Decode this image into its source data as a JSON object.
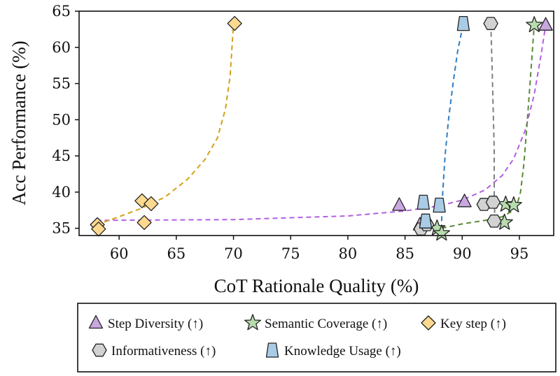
{
  "chart_data": {
    "type": "scatter",
    "title": "",
    "xlabel": "CoT Rationale Quality (%)",
    "ylabel": "Acc Performance (%)",
    "xlim": [
      56.5,
      98
    ],
    "ylim": [
      34,
      65
    ],
    "xticks": [
      60,
      65,
      70,
      75,
      80,
      85,
      90,
      95
    ],
    "yticks": [
      35,
      40,
      45,
      50,
      55,
      60,
      65
    ],
    "grid": false,
    "legend_position": "bottom",
    "series": [
      {
        "name": "Step Diversity (↑)",
        "marker": "triangle",
        "fill": "#c9a8e0",
        "curve_color": "#b25fe3",
        "points": [
          [
            84.5,
            38.2
          ],
          [
            86.3,
            35.5
          ],
          [
            90.2,
            38.7
          ],
          [
            97.3,
            63.1
          ]
        ],
        "curve": [
          [
            58,
            36.1
          ],
          [
            70,
            36.2
          ],
          [
            80,
            36.7
          ],
          [
            85,
            37.4
          ],
          [
            88,
            38.1
          ],
          [
            90,
            38.9
          ],
          [
            92,
            40.3
          ],
          [
            93.5,
            42.3
          ],
          [
            94.5,
            44.6
          ],
          [
            95.5,
            48.5
          ],
          [
            96.3,
            53.5
          ],
          [
            96.9,
            59
          ],
          [
            97.3,
            63.1
          ]
        ]
      },
      {
        "name": "Semantic Coverage (↑)",
        "marker": "star",
        "fill": "#b8dcae",
        "curve_color": "#5a8a3a",
        "points": [
          [
            87.8,
            35
          ],
          [
            88.2,
            34.3
          ],
          [
            93.7,
            35.8
          ],
          [
            93.8,
            38.3
          ],
          [
            94.5,
            38.2
          ],
          [
            96.3,
            63.1
          ]
        ],
        "curve": [
          [
            88.2,
            35
          ],
          [
            90,
            35.6
          ],
          [
            92,
            36.1
          ],
          [
            93.5,
            36.6
          ],
          [
            94.3,
            37.3
          ],
          [
            94.8,
            38.3
          ],
          [
            95.1,
            40
          ],
          [
            95.4,
            44
          ],
          [
            95.7,
            50
          ],
          [
            96,
            56.5
          ],
          [
            96.3,
            63.1
          ]
        ]
      },
      {
        "name": "Key step (↑)",
        "marker": "diamond",
        "fill": "#fcd98e",
        "curve_color": "#d4a017",
        "points": [
          [
            58.1,
            35.5
          ],
          [
            58.2,
            34.9
          ],
          [
            62.0,
            38.8
          ],
          [
            62.2,
            35.8
          ],
          [
            62.8,
            38.4
          ],
          [
            70.1,
            63.3
          ]
        ],
        "curve": [
          [
            58,
            35.5
          ],
          [
            60,
            36.6
          ],
          [
            62,
            37.8
          ],
          [
            64,
            39.3
          ],
          [
            66,
            41.8
          ],
          [
            67.5,
            44.5
          ],
          [
            68.6,
            47.5
          ],
          [
            69.3,
            51.5
          ],
          [
            69.7,
            56
          ],
          [
            70,
            63.3
          ]
        ]
      },
      {
        "name": "Informativeness (↑)",
        "marker": "hexagon",
        "fill": "#d2d2d2",
        "curve_color": "#7f7f7f",
        "points": [
          [
            86.4,
            34.9
          ],
          [
            86.9,
            35.5
          ],
          [
            91.9,
            38.3
          ],
          [
            92.7,
            38.6
          ],
          [
            92.8,
            36.0
          ],
          [
            92.5,
            63.3
          ]
        ],
        "curve": [
          [
            92.5,
            63.3
          ],
          [
            92.6,
            58
          ],
          [
            92.7,
            52
          ],
          [
            92.8,
            46
          ],
          [
            92.8,
            40
          ],
          [
            92.85,
            36
          ]
        ]
      },
      {
        "name": "Knowledge Usage (↑)",
        "marker": "trapezoid",
        "fill": "#a9cbe6",
        "curve_color": "#2f7cc4",
        "points": [
          [
            86.6,
            38.6
          ],
          [
            86.8,
            36.0
          ],
          [
            88.0,
            38.2
          ],
          [
            90.1,
            63.3
          ]
        ],
        "curve": [
          [
            88.2,
            36
          ],
          [
            88.3,
            40
          ],
          [
            88.5,
            45
          ],
          [
            88.8,
            50
          ],
          [
            89.2,
            55
          ],
          [
            89.6,
            59.5
          ],
          [
            90.1,
            63.3
          ]
        ]
      }
    ]
  }
}
